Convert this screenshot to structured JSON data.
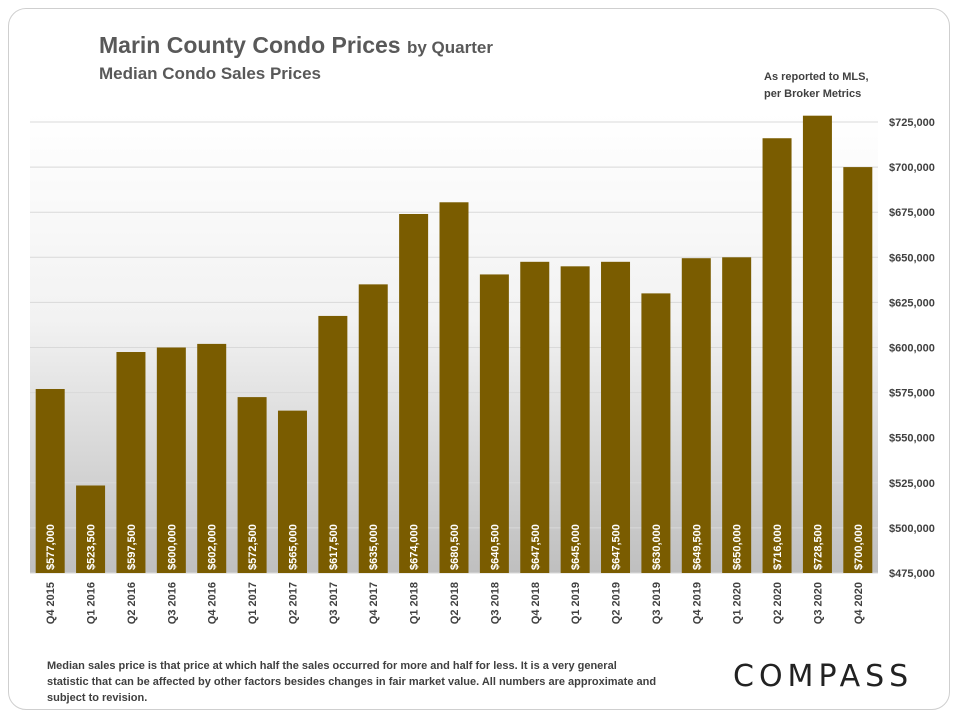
{
  "header": {
    "title": "Marin County Condo Prices",
    "title_suffix": "by Quarter",
    "subtitle": "Median  Condo Sales Prices",
    "note_line1": "As reported to MLS,",
    "note_line2": "per Broker Metrics"
  },
  "footer": {
    "footnote": "Median sales price is that price at which half the sales occurred for more and half for less. It is a very general statistic that can be affected by other factors besides changes in fair market value. All numbers are approximate and subject to revision.",
    "logo": "COMPASS"
  },
  "colors": {
    "bar": "#7a5c00",
    "bar_label": "#ffffff",
    "gridline": "#d9d9d9",
    "plot_gradient_top": "#ffffff",
    "plot_gradient_mid": "#f2f2f2",
    "plot_gradient_bottom": "#bfbfbf"
  },
  "chart_data": {
    "type": "bar",
    "categories": [
      "Q4 2015",
      "Q1 2016",
      "Q2 2016",
      "Q3 2016",
      "Q4 2016",
      "Q1 2017",
      "Q2 2017",
      "Q3 2017",
      "Q4 2017",
      "Q1 2018",
      "Q2 2018",
      "Q3 2018",
      "Q4 2018",
      "Q1 2019",
      "Q2 2019",
      "Q3 2019",
      "Q4 2019",
      "Q1 2020",
      "Q2 2020",
      "Q3 2020",
      "Q4 2020"
    ],
    "values": [
      577000,
      523500,
      597500,
      600000,
      602000,
      572500,
      565000,
      617500,
      635000,
      674000,
      680500,
      640500,
      647500,
      645000,
      647500,
      630000,
      649500,
      650000,
      716000,
      728500,
      700000
    ],
    "data_labels": [
      "$577,000",
      "$523,500",
      "$597,500",
      "$600,000",
      "$602,000",
      "$572,500",
      "$565,000",
      "$617,500",
      "$635,000",
      "$674,000",
      "$680,500",
      "$640,500",
      "$647,500",
      "$645,000",
      "$647,500",
      "$630,000",
      "$649,500",
      "$650,000",
      "$716,000",
      "$728,500",
      "$700,000"
    ],
    "title": "Marin County Condo Prices by Quarter",
    "subtitle": "Median  Condo Sales Prices",
    "xlabel": "",
    "ylabel": "",
    "ylim": [
      475000,
      725000
    ],
    "yticks": [
      475000,
      500000,
      525000,
      550000,
      575000,
      600000,
      625000,
      650000,
      675000,
      700000,
      725000
    ],
    "ytick_labels": [
      "$475,000",
      "$500,000",
      "$525,000",
      "$550,000",
      "$575,000",
      "$600,000",
      "$625,000",
      "$650,000",
      "$675,000",
      "$700,000",
      "$725,000"
    ],
    "y_axis_side": "right",
    "grid": true,
    "legend": "none"
  }
}
